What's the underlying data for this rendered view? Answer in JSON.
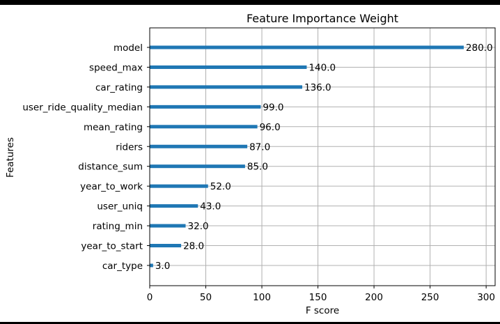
{
  "chart_data": {
    "type": "bar",
    "orientation": "horizontal",
    "title": "Feature Importance Weight",
    "xlabel": "F score",
    "ylabel": "Features",
    "xlim": [
      0,
      308
    ],
    "xticks": [
      0,
      50,
      100,
      150,
      200,
      250,
      300
    ],
    "grid": true,
    "bar_color": "#1f77b4",
    "categories": [
      "model",
      "speed_max",
      "car_rating",
      "user_ride_quality_median",
      "mean_rating",
      "riders",
      "distance_sum",
      "year_to_work",
      "user_uniq",
      "rating_min",
      "year_to_start",
      "car_type"
    ],
    "values": [
      280,
      140,
      136,
      99,
      96,
      87,
      85,
      52,
      43,
      32,
      28,
      3
    ],
    "value_labels": [
      "280.0",
      "140.0",
      "136.0",
      "99.0",
      "96.0",
      "87.0",
      "85.0",
      "52.0",
      "43.0",
      "32.0",
      "28.0",
      "3.0"
    ]
  }
}
